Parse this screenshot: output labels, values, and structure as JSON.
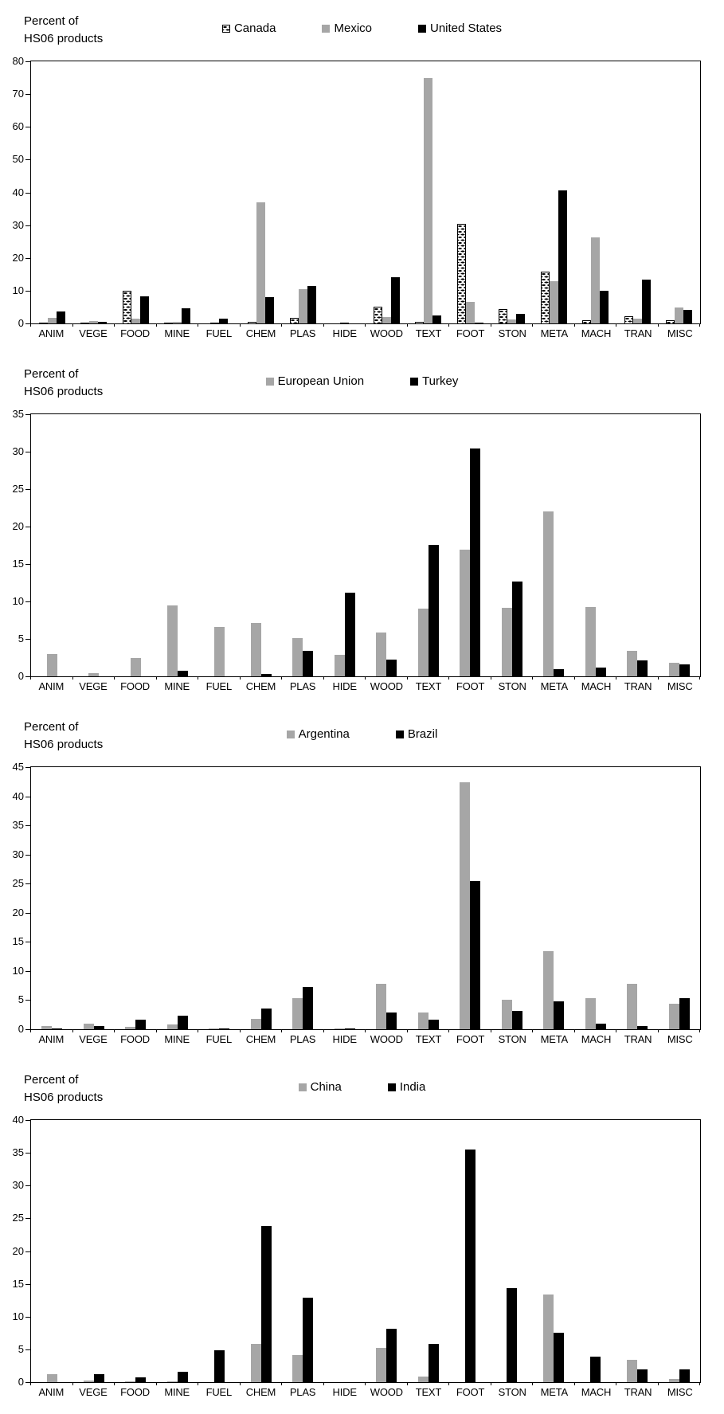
{
  "axis_label": {
    "line1": "Percent of",
    "line2": "HS06 products"
  },
  "colors": {
    "gray": "#a6a6a6",
    "black": "#000000",
    "pattern_fill": "#ffffff",
    "axis": "#000000"
  },
  "categories": [
    "ANIM",
    "VEGE",
    "FOOD",
    "MINE",
    "FUEL",
    "CHEM",
    "PLAS",
    "HIDE",
    "WOOD",
    "TEXT",
    "FOOT",
    "STON",
    "META",
    "MACH",
    "TRAN",
    "MISC"
  ],
  "chart_data": [
    {
      "type": "bar",
      "title": "",
      "ylabel": "Percent of HS06 products",
      "categories": [
        "ANIM",
        "VEGE",
        "FOOD",
        "MINE",
        "FUEL",
        "CHEM",
        "PLAS",
        "HIDE",
        "WOOD",
        "TEXT",
        "FOOT",
        "STON",
        "META",
        "MACH",
        "TRAN",
        "MISC"
      ],
      "ylim": [
        0,
        80
      ],
      "ytick_step": 10,
      "grid": false,
      "legend_position": "top-center",
      "series": [
        {
          "name": "Canada",
          "style": "dotted",
          "values": [
            0.3,
            0.3,
            10.0,
            0.1,
            0.1,
            0.6,
            1.8,
            0.1,
            5.2,
            0.6,
            30.4,
            4.4,
            15.8,
            1.0,
            2.2,
            1.0
          ]
        },
        {
          "name": "Mexico",
          "style": "gray",
          "values": [
            1.8,
            0.7,
            1.4,
            0.5,
            0.0,
            37.0,
            10.4,
            0.0,
            1.9,
            75.0,
            6.5,
            1.3,
            12.8,
            26.3,
            1.4,
            4.8
          ]
        },
        {
          "name": "United States",
          "style": "black",
          "values": [
            3.7,
            0.5,
            8.4,
            4.6,
            1.4,
            8.0,
            11.4,
            0.0,
            14.2,
            2.5,
            0.2,
            3.0,
            40.5,
            10.1,
            13.4,
            4.2
          ]
        }
      ]
    },
    {
      "type": "bar",
      "title": "",
      "ylabel": "Percent of HS06 products",
      "categories": [
        "ANIM",
        "VEGE",
        "FOOD",
        "MINE",
        "FUEL",
        "CHEM",
        "PLAS",
        "HIDE",
        "WOOD",
        "TEXT",
        "FOOT",
        "STON",
        "META",
        "MACH",
        "TRAN",
        "MISC"
      ],
      "ylim": [
        0,
        35
      ],
      "ytick_step": 5,
      "grid": false,
      "legend_position": "top-center",
      "series": [
        {
          "name": "European Union",
          "style": "gray",
          "values": [
            3.0,
            0.4,
            2.5,
            9.5,
            6.6,
            7.1,
            5.1,
            2.9,
            5.9,
            9.1,
            16.9,
            9.2,
            22.0,
            9.3,
            3.4,
            1.8
          ]
        },
        {
          "name": "Turkey",
          "style": "black",
          "values": [
            0.0,
            0.0,
            0.0,
            0.8,
            0.0,
            0.3,
            3.4,
            11.2,
            2.2,
            17.6,
            30.4,
            12.7,
            1.0,
            1.2,
            2.1,
            1.6
          ]
        }
      ]
    },
    {
      "type": "bar",
      "title": "",
      "ylabel": "Percent of HS06 products",
      "categories": [
        "ANIM",
        "VEGE",
        "FOOD",
        "MINE",
        "FUEL",
        "CHEM",
        "PLAS",
        "HIDE",
        "WOOD",
        "TEXT",
        "FOOT",
        "STON",
        "META",
        "MACH",
        "TRAN",
        "MISC"
      ],
      "ylim": [
        0,
        45
      ],
      "ytick_step": 5,
      "grid": false,
      "legend_position": "top-center",
      "series": [
        {
          "name": "Argentina",
          "style": "gray",
          "values": [
            0.5,
            0.9,
            0.4,
            0.8,
            0.1,
            1.8,
            5.4,
            0.1,
            7.8,
            2.9,
            42.4,
            5.1,
            13.4,
            5.4,
            7.8,
            4.4
          ]
        },
        {
          "name": "Brazil",
          "style": "black",
          "values": [
            0.1,
            0.6,
            1.7,
            2.4,
            0.1,
            3.5,
            7.3,
            0.1,
            2.9,
            1.7,
            25.4,
            3.1,
            4.8,
            1.0,
            0.6,
            5.4
          ]
        }
      ]
    },
    {
      "type": "bar",
      "title": "",
      "ylabel": "Percent of HS06 products",
      "categories": [
        "ANIM",
        "VEGE",
        "FOOD",
        "MINE",
        "FUEL",
        "CHEM",
        "PLAS",
        "HIDE",
        "WOOD",
        "TEXT",
        "FOOT",
        "STON",
        "META",
        "MACH",
        "TRAN",
        "MISC"
      ],
      "ylim": [
        0,
        40
      ],
      "ytick_step": 5,
      "grid": false,
      "legend_position": "top-center",
      "series": [
        {
          "name": "China",
          "style": "gray",
          "values": [
            1.2,
            0.2,
            0.1,
            0.1,
            0.0,
            5.9,
            4.2,
            0.0,
            5.2,
            0.9,
            0.0,
            0.0,
            13.4,
            0.0,
            3.4,
            0.5
          ]
        },
        {
          "name": "India",
          "style": "black",
          "values": [
            0.0,
            1.2,
            0.7,
            1.6,
            4.9,
            23.8,
            12.9,
            0.0,
            8.1,
            5.8,
            35.5,
            14.4,
            7.5,
            3.9,
            2.0,
            1.9
          ]
        }
      ]
    }
  ]
}
